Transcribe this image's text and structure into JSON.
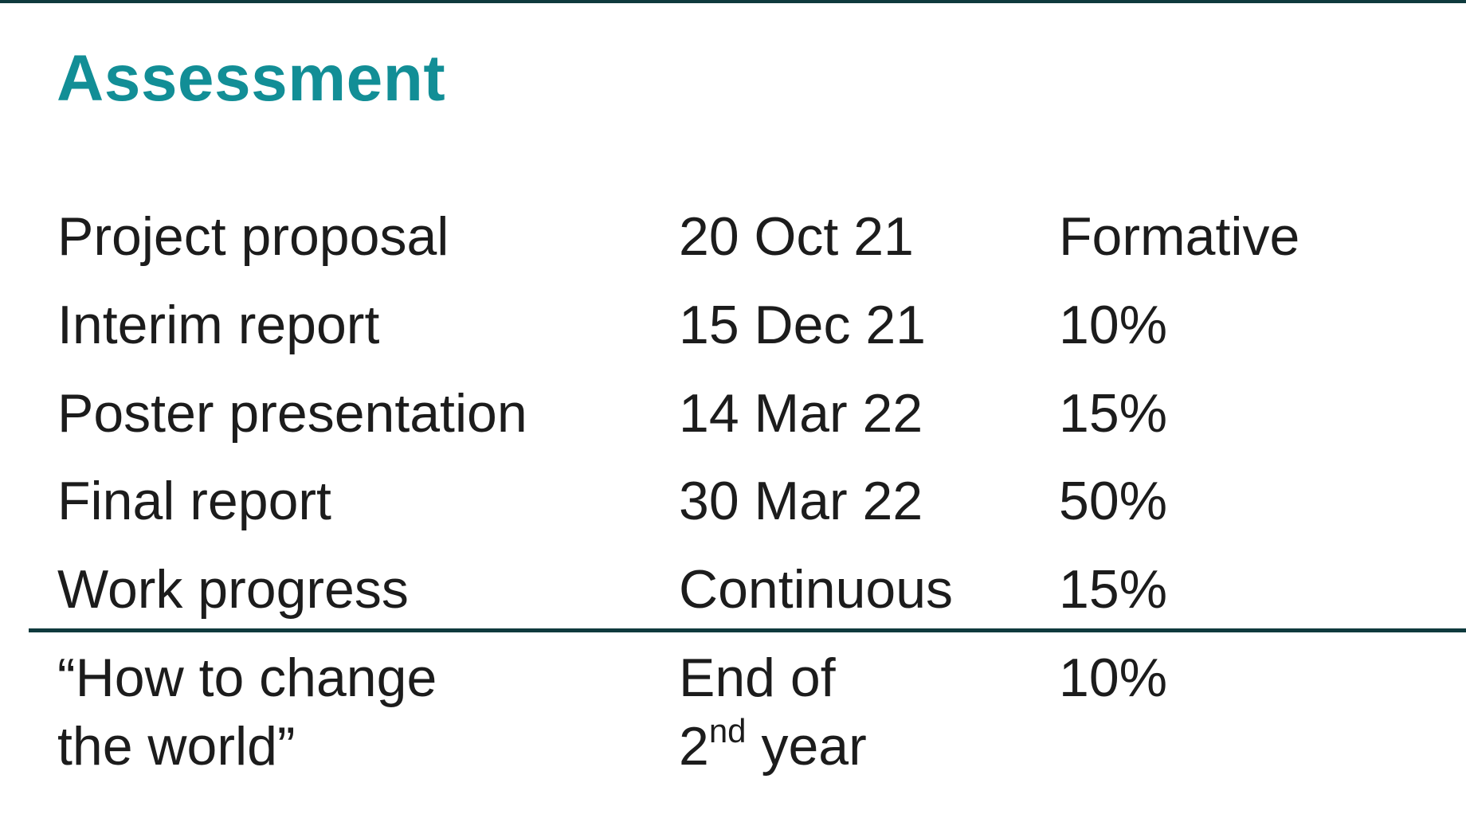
{
  "slide": {
    "title": "Assessment",
    "colors": {
      "title": "#128e96",
      "rule": "#0f3a3d",
      "text": "#1c1c1c"
    },
    "rows": [
      {
        "item": "Project proposal",
        "date": "20 Oct 21",
        "weight": "Formative"
      },
      {
        "item": "Interim report",
        "date": "15 Dec 21",
        "weight": "10%"
      },
      {
        "item": "Poster presentation",
        "date": "14 Mar 22",
        "weight": "15%"
      },
      {
        "item": "Final report",
        "date": "30 Mar 22",
        "weight": "50%"
      },
      {
        "item": "Work progress",
        "date": "Continuous",
        "weight": "15%"
      }
    ],
    "extra_row": {
      "item_line1": "“How to change",
      "item_line2": "the world”",
      "date_line1": "End of",
      "date_line2_prefix": "2",
      "date_line2_sup": "nd",
      "date_line2_suffix": " year",
      "weight": "10%"
    }
  }
}
